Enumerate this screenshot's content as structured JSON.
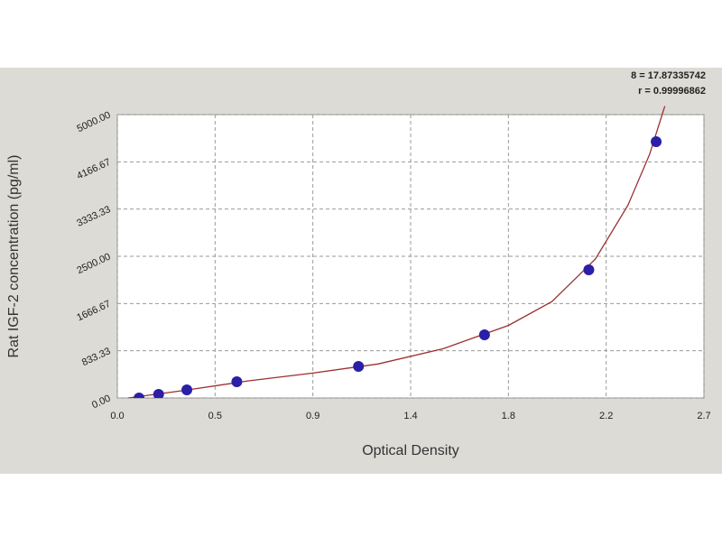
{
  "chart_data": {
    "type": "scatter",
    "x_label": "Optical Density",
    "y_label": "Rat IGF-2 concentration (pg/ml)",
    "annotations": [
      "8 = 17.87335742",
      "r = 0.99996862"
    ],
    "xlim": [
      0,
      2.7
    ],
    "ylim": [
      0,
      5000
    ],
    "xticks": [
      {
        "value": 0,
        "label": "0.0"
      },
      {
        "value": 0.45,
        "label": "0.5"
      },
      {
        "value": 0.9,
        "label": "0.9"
      },
      {
        "value": 1.35,
        "label": "1.4"
      },
      {
        "value": 1.8,
        "label": "1.8"
      },
      {
        "value": 2.25,
        "label": "2.2"
      },
      {
        "value": 2.7,
        "label": "2.7"
      }
    ],
    "yticks": [
      {
        "value": 0,
        "label": "0.00"
      },
      {
        "value": 833.33,
        "label": "833.33"
      },
      {
        "value": 1666.67,
        "label": "1666.67"
      },
      {
        "value": 2500,
        "label": "2500.00"
      },
      {
        "value": 3333.33,
        "label": "3333.33"
      },
      {
        "value": 4166.67,
        "label": "4166.67"
      },
      {
        "value": 5000,
        "label": "5000.00"
      }
    ],
    "grid": true,
    "series": [
      {
        "color": "#2b1fa8",
        "x": [
          0.1,
          0.19,
          0.32,
          0.55,
          1.11,
          1.69,
          2.17,
          2.48
        ],
        "values": [
          0,
          64,
          143,
          287,
          557,
          1115,
          2261,
          4522
        ]
      },
      {
        "color": "#9c2f2f",
        "x": [
          0.05,
          0.3,
          0.6,
          0.9,
          1.2,
          1.5,
          1.8,
          2.0,
          2.2,
          2.35,
          2.45,
          2.52
        ],
        "values": [
          0,
          130,
          300,
          440,
          600,
          870,
          1280,
          1700,
          2450,
          3400,
          4300,
          5150
        ]
      }
    ]
  }
}
